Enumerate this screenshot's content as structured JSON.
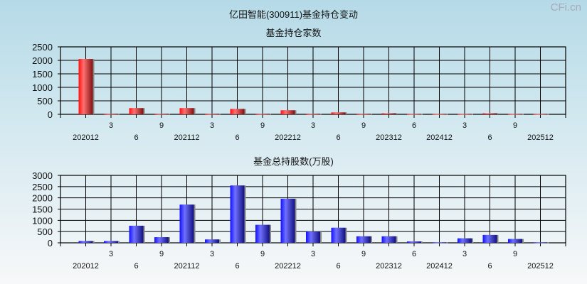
{
  "page_title": "亿田智能(300911)基金持仓变动",
  "watermark": "CFi.cn",
  "chart_data": [
    {
      "type": "bar",
      "title": "基金持仓家数",
      "categories": [
        "202012",
        "3",
        "6",
        "9",
        "202112",
        "3",
        "6",
        "9",
        "202212",
        "3",
        "6",
        "9",
        "202312",
        "6",
        "202412",
        "3",
        "6",
        "9",
        "202512"
      ],
      "values": [
        2050,
        20,
        230,
        20,
        230,
        20,
        200,
        20,
        150,
        20,
        70,
        20,
        40,
        15,
        15,
        15,
        40,
        15,
        15
      ],
      "ylim": [
        0,
        2500
      ],
      "yticks": [
        0,
        500,
        1000,
        1500,
        2000,
        2500
      ],
      "grid": true,
      "color": "#e8141c"
    },
    {
      "type": "bar",
      "title": "基金总持股数(万股)",
      "categories": [
        "202012",
        "3",
        "6",
        "9",
        "202112",
        "3",
        "6",
        "9",
        "202212",
        "3",
        "6",
        "9",
        "202312",
        "6",
        "202412",
        "3",
        "6",
        "9",
        "202512"
      ],
      "values": [
        80,
        80,
        760,
        250,
        1700,
        150,
        2550,
        800,
        1960,
        500,
        670,
        290,
        290,
        60,
        20,
        200,
        350,
        170,
        20
      ],
      "ylim": [
        0,
        3000
      ],
      "yticks": [
        0,
        500,
        1000,
        1500,
        2000,
        2500,
        3000
      ],
      "grid": true,
      "color": "#2020e8"
    }
  ]
}
